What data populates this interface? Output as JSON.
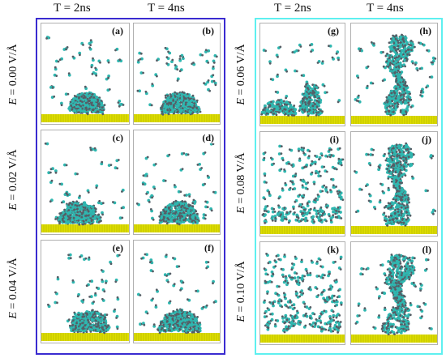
{
  "colors": {
    "left_border": "#3a2bd0",
    "right_border": "#5ef0f0",
    "molecule": "#2fb7b0",
    "molecule_dark": "#555e66",
    "substrate": "#dede00",
    "substrate_dark": "#9a9a00"
  },
  "left_group": {
    "columns": [
      "T = 2ns",
      "T = 4ns"
    ],
    "rows": [
      {
        "symbol": "E",
        "value": " = 0.00 V/Å",
        "panels": [
          {
            "letter": "(a)",
            "state": "droplet",
            "spread": 0.45
          },
          {
            "letter": "(b)",
            "state": "droplet",
            "spread": 0.5
          }
        ]
      },
      {
        "symbol": "E",
        "value": " = 0.02 V/Å",
        "panels": [
          {
            "letter": "(c)",
            "state": "droplet",
            "spread": 0.55
          },
          {
            "letter": "(d)",
            "state": "droplet",
            "spread": 0.5
          }
        ]
      },
      {
        "symbol": "E",
        "value": " = 0.04 V/Å",
        "panels": [
          {
            "letter": "(e)",
            "state": "droplet",
            "spread": 0.5
          },
          {
            "letter": "(f)",
            "state": "droplet",
            "spread": 0.55
          }
        ]
      }
    ]
  },
  "right_group": {
    "columns": [
      "T = 2ns",
      "T = 4ns"
    ],
    "rows": [
      {
        "symbol": "E",
        "value": " = 0.06 V/Å",
        "panels": [
          {
            "letter": "(g)",
            "state": "split"
          },
          {
            "letter": "(h)",
            "state": "column"
          }
        ]
      },
      {
        "symbol": "E",
        "value": " = 0.08 V/Å",
        "panels": [
          {
            "letter": "(i)",
            "state": "dispersed"
          },
          {
            "letter": "(j)",
            "state": "column"
          }
        ]
      },
      {
        "symbol": "E",
        "value": " = 0.10 V/Å",
        "panels": [
          {
            "letter": "(k)",
            "state": "dispersed"
          },
          {
            "letter": "(l)",
            "state": "column"
          }
        ]
      }
    ]
  }
}
